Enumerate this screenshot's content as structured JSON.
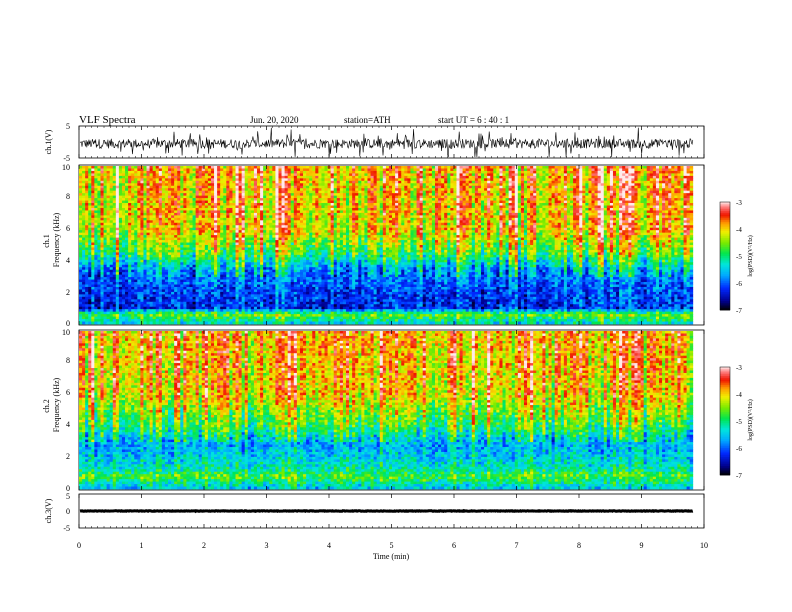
{
  "header": {
    "title": "VLF  Spectra",
    "date": "Jun. 20, 2020",
    "station": "station=ATH",
    "start": "start  UT  =   6  : 40 : 1"
  },
  "chart_data": [
    {
      "type": "line",
      "panel": "ch1-waveform",
      "ylabel": "ch.1(V)",
      "ylim": [
        -5,
        5
      ],
      "ytick_labels": [
        "5",
        "-5"
      ],
      "xlim": [
        0,
        10
      ],
      "baseline": -0.5,
      "amplitude": 3.0,
      "color": "#000000"
    },
    {
      "type": "heatmap",
      "panel": "ch1-spectrogram",
      "ylabel": "ch.1\nFrequency  (kHz)",
      "ylim": [
        0,
        10
      ],
      "ytick_labels": [
        "0",
        "2",
        "4",
        "6",
        "8",
        "10"
      ],
      "xlim": [
        0,
        9.82
      ],
      "colorbar": {
        "label": "log(PSD)(V²/Hz)",
        "range": [
          -7,
          -3
        ],
        "tick_labels": [
          "-3",
          "-4",
          "-5",
          "-6",
          "-7"
        ]
      },
      "frequency_profile_khz": [
        {
          "f": 10,
          "level": -3.9
        },
        {
          "f": 6,
          "level": -4.1
        },
        {
          "f": 4.5,
          "level": -4.8
        },
        {
          "f": 3.4,
          "level": -5.8
        },
        {
          "f": 2,
          "level": -6.2
        },
        {
          "f": 1,
          "level": -6.3
        },
        {
          "f": 0.6,
          "level": -4.6
        },
        {
          "f": 0,
          "level": -5.5
        }
      ]
    },
    {
      "type": "heatmap",
      "panel": "ch2-spectrogram",
      "ylabel": "ch.2\nFrequency  (kHz)",
      "ylim": [
        0,
        10
      ],
      "ytick_labels": [
        "0",
        "2",
        "4",
        "6",
        "8",
        "10"
      ],
      "xlim": [
        0,
        9.82
      ],
      "colorbar": {
        "label": "log(PSD)(V²/Hz)",
        "range": [
          -7,
          -3
        ],
        "tick_labels": [
          "-3",
          "-4",
          "-5",
          "-6",
          "-7"
        ]
      },
      "frequency_profile_khz": [
        {
          "f": 10,
          "level": -3.9
        },
        {
          "f": 6,
          "level": -4.1
        },
        {
          "f": 4,
          "level": -4.9
        },
        {
          "f": 2.8,
          "level": -5.7
        },
        {
          "f": 2,
          "level": -5.5
        },
        {
          "f": 1.2,
          "level": -5.2
        },
        {
          "f": 0.8,
          "level": -4.7
        },
        {
          "f": 0,
          "level": -5.6
        }
      ]
    },
    {
      "type": "line",
      "panel": "ch3-waveform",
      "ylabel": "ch.3(V)",
      "ylim": [
        -5,
        5
      ],
      "ytick_labels": [
        "5",
        "0",
        "-5"
      ],
      "xlim": [
        0,
        10
      ],
      "baseline": 0,
      "amplitude": 0.15,
      "color": "#000000"
    }
  ],
  "xaxis": {
    "label": "Time  (min)",
    "range": [
      0,
      10
    ],
    "tick_labels": [
      "0",
      "1",
      "2",
      "3",
      "4",
      "5",
      "6",
      "7",
      "8",
      "9",
      "10"
    ]
  }
}
